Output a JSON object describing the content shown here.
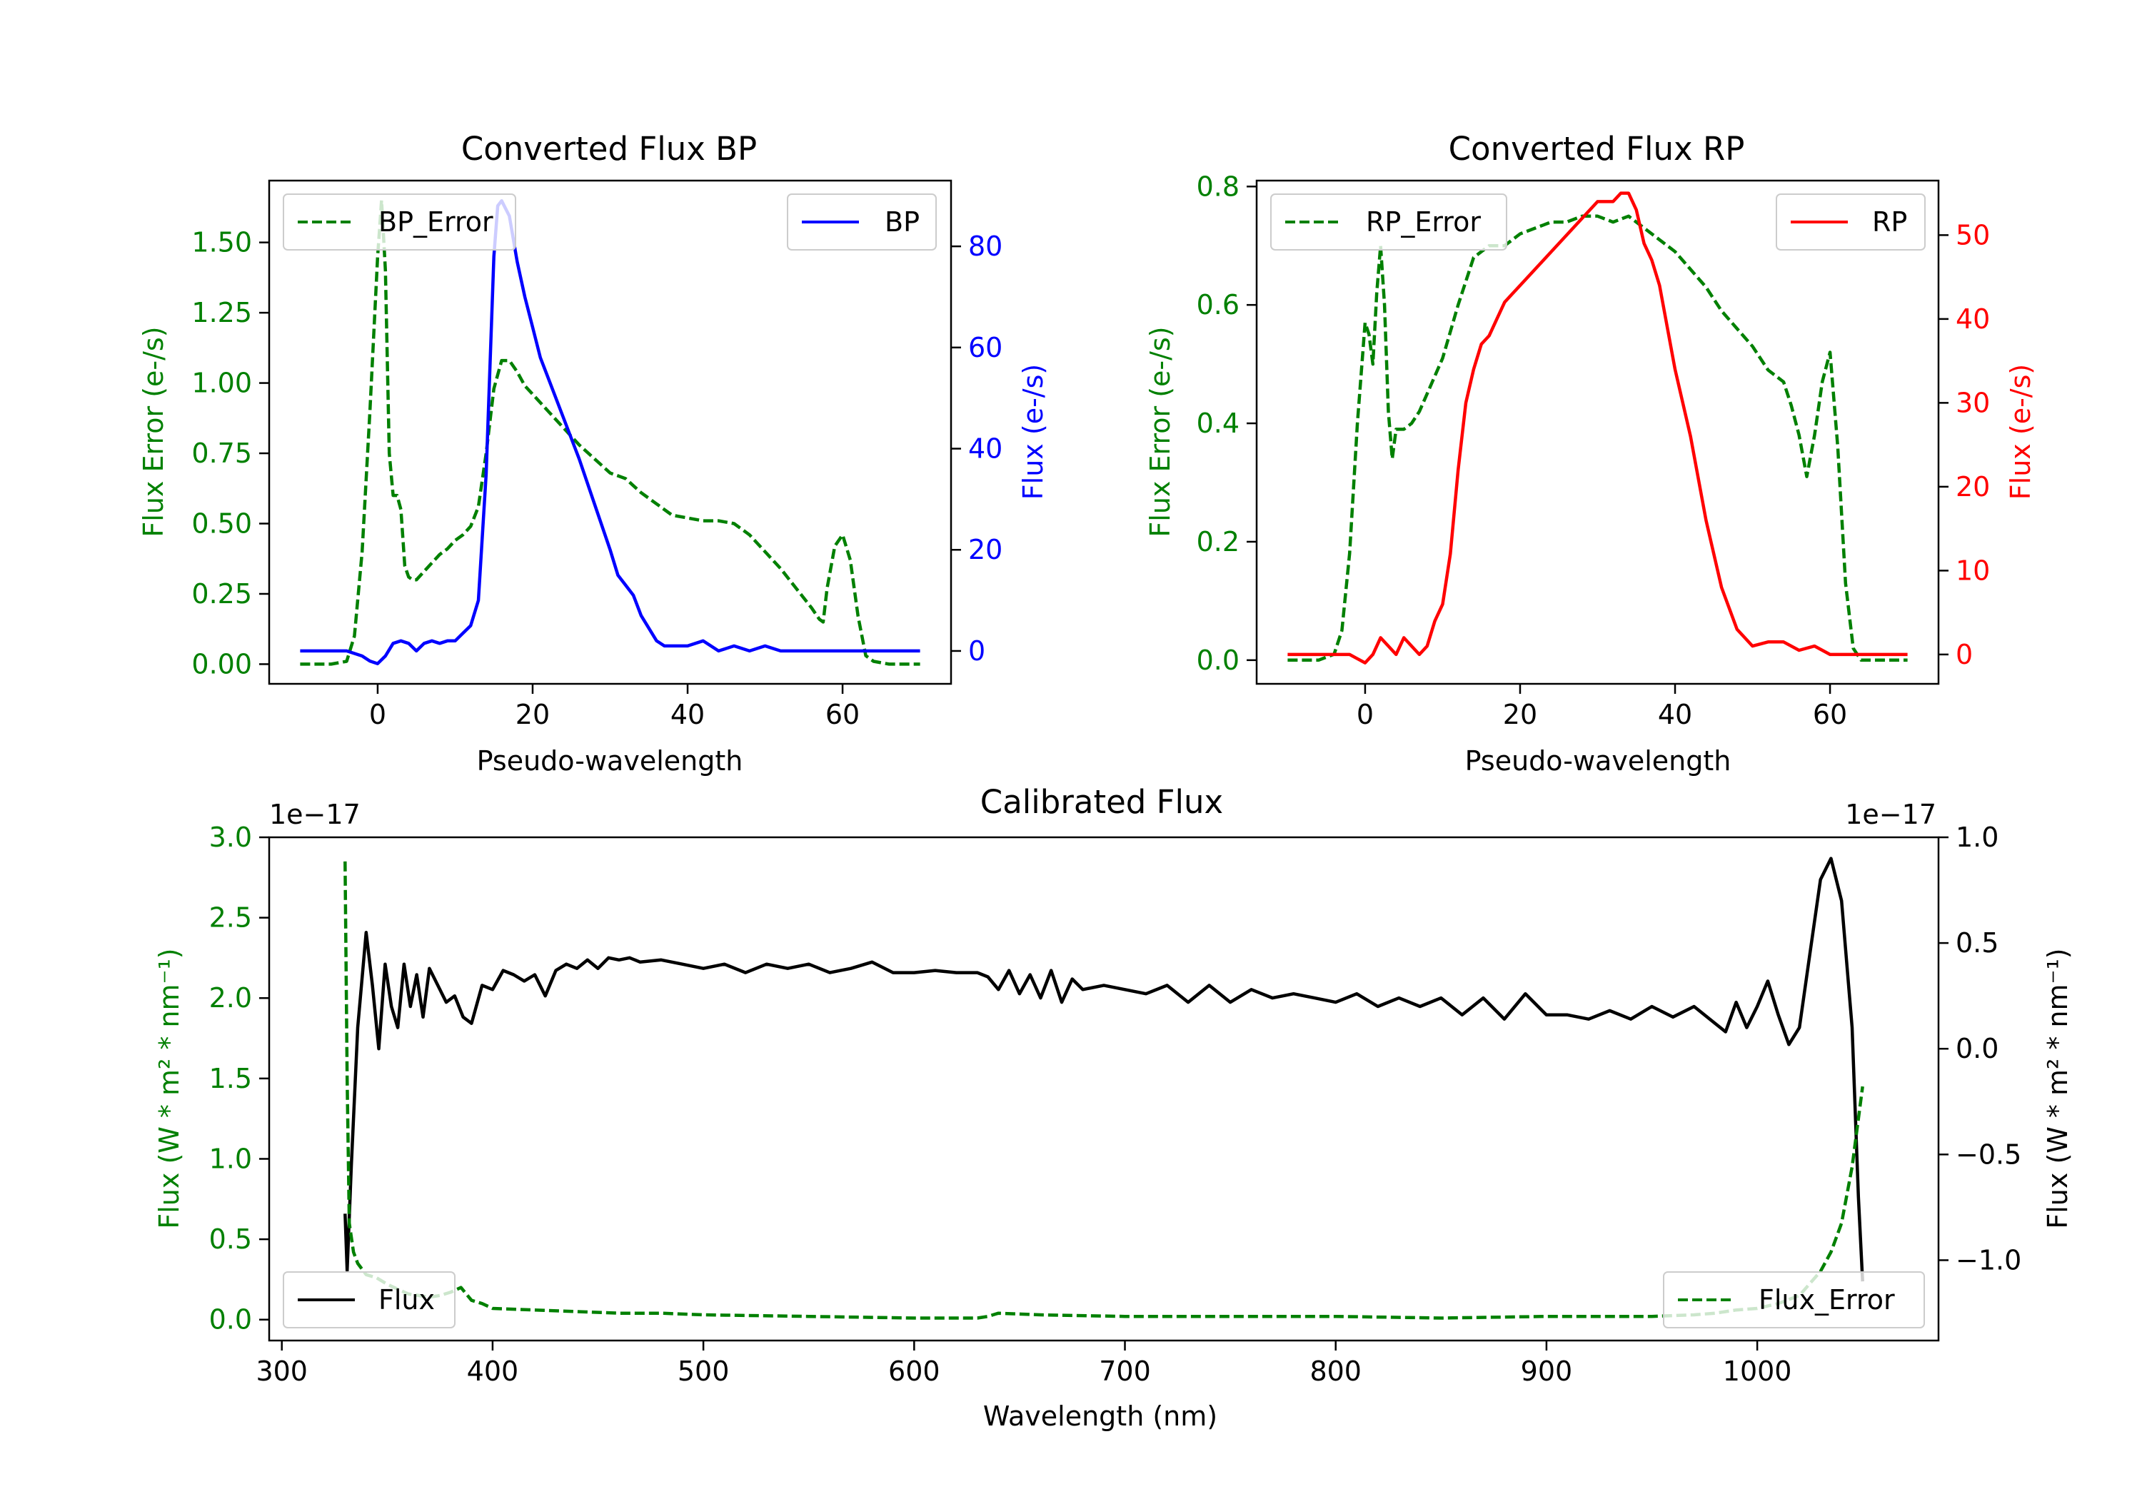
{
  "colors": {
    "green": "#008000",
    "blue": "#0000ff",
    "red": "#ff0000",
    "black": "#000000"
  },
  "chart_data": [
    {
      "type": "line",
      "id": "bp",
      "title": "Converted Flux BP",
      "xlabel": "Pseudo-wavelength",
      "ylabel_left": "Flux Error (e-/s)",
      "ylabel_right": "Flux (e-/s)",
      "xlim": [
        -14,
        74
      ],
      "ylim_left": [
        -0.07,
        1.72
      ],
      "ylim_right": [
        -6.5,
        93
      ],
      "xticks": [
        0,
        20,
        40,
        60
      ],
      "yticks_left": [
        0.0,
        0.25,
        0.5,
        0.75,
        1.0,
        1.25,
        1.5
      ],
      "yticks_left_labels": [
        "0.00",
        "0.25",
        "0.50",
        "0.75",
        "1.00",
        "1.25",
        "1.50"
      ],
      "yticks_right": [
        0,
        20,
        40,
        60,
        80
      ],
      "yticks_right_labels": [
        "0",
        "20",
        "40",
        "60",
        "80"
      ],
      "legend_left": {
        "label": "BP_Error",
        "placement": "upper left"
      },
      "legend_right": {
        "label": "BP",
        "placement": "upper right"
      },
      "series": [
        {
          "name": "BP_Error",
          "axis": "left",
          "style": "dashed",
          "color": "#008000",
          "x": [
            -10,
            -6,
            -4,
            -3,
            -2,
            -1,
            0,
            0.5,
            1,
            1.5,
            2,
            2.5,
            3,
            3.5,
            4,
            4.5,
            5,
            6,
            7,
            8,
            9,
            10,
            11,
            12,
            13,
            14,
            15,
            16,
            17,
            18,
            19,
            20,
            22,
            24,
            26,
            28,
            30,
            32,
            34,
            36,
            38,
            40,
            42,
            44,
            46,
            48,
            50,
            52,
            54,
            56,
            57,
            57.5,
            58,
            59,
            60,
            61,
            62,
            63,
            64,
            66,
            68,
            70
          ],
          "values": [
            0.0,
            0.0,
            0.01,
            0.1,
            0.4,
            0.9,
            1.45,
            1.65,
            1.4,
            0.75,
            0.6,
            0.6,
            0.55,
            0.35,
            0.31,
            0.3,
            0.3,
            0.33,
            0.36,
            0.39,
            0.41,
            0.44,
            0.46,
            0.49,
            0.56,
            0.75,
            0.98,
            1.08,
            1.08,
            1.04,
            0.99,
            0.96,
            0.9,
            0.84,
            0.78,
            0.73,
            0.68,
            0.66,
            0.61,
            0.57,
            0.53,
            0.52,
            0.51,
            0.51,
            0.5,
            0.46,
            0.4,
            0.34,
            0.27,
            0.2,
            0.16,
            0.15,
            0.27,
            0.42,
            0.46,
            0.37,
            0.17,
            0.03,
            0.01,
            0.0,
            0.0,
            0.0
          ]
        },
        {
          "name": "BP",
          "axis": "right",
          "style": "solid",
          "color": "#0000ff",
          "x": [
            -10,
            -6,
            -4,
            -2,
            -1,
            0,
            1,
            2,
            3,
            4,
            5,
            6,
            7,
            8,
            9,
            10,
            11,
            12,
            13,
            14,
            15,
            15.5,
            16,
            17,
            18,
            19,
            20,
            21,
            22,
            24,
            26,
            28,
            30,
            31,
            32,
            33,
            34,
            36,
            37,
            38,
            40,
            42,
            44,
            46,
            48,
            50,
            52,
            54,
            56,
            58,
            60,
            62,
            64,
            66,
            68,
            70
          ],
          "values": [
            0,
            0,
            0,
            -1,
            -2,
            -2.5,
            -1,
            1.5,
            2,
            1.5,
            0,
            1.5,
            2,
            1.5,
            2,
            2,
            3.5,
            5,
            10,
            35,
            78,
            88,
            89,
            86,
            77,
            70,
            64,
            58,
            54,
            46,
            38,
            29,
            20,
            15,
            13,
            11,
            7,
            2,
            1,
            1,
            1,
            2,
            0,
            1,
            0,
            1,
            0,
            0,
            0,
            0,
            0,
            0,
            0,
            0,
            0,
            0
          ]
        }
      ]
    },
    {
      "type": "line",
      "id": "rp",
      "title": "Converted Flux RP",
      "xlabel": "Pseudo-wavelength",
      "ylabel_left": "Flux Error (e-/s)",
      "ylabel_right": "Flux (e-/s)",
      "xlim": [
        -14,
        74
      ],
      "ylim_left": [
        -0.04,
        0.81
      ],
      "ylim_right": [
        -3.5,
        56.5
      ],
      "xticks": [
        0,
        20,
        40,
        60
      ],
      "yticks_left": [
        0.0,
        0.2,
        0.4,
        0.6,
        0.8
      ],
      "yticks_left_labels": [
        "0.0",
        "0.2",
        "0.4",
        "0.6",
        "0.8"
      ],
      "yticks_right": [
        0,
        10,
        20,
        30,
        40,
        50
      ],
      "yticks_right_labels": [
        "0",
        "10",
        "20",
        "30",
        "40",
        "50"
      ],
      "legend_left": {
        "label": "RP_Error",
        "placement": "upper left"
      },
      "legend_right": {
        "label": "RP",
        "placement": "upper right"
      },
      "series": [
        {
          "name": "RP_Error",
          "axis": "right_none",
          "style": "dashed",
          "color": "#008000",
          "axis_used": "left",
          "x": [
            -10,
            -6,
            -4,
            -3,
            -2,
            -1,
            0,
            0.5,
            1,
            1.5,
            2,
            2.5,
            3,
            3.5,
            4,
            4.5,
            5,
            6,
            7,
            8,
            10,
            12,
            14,
            16,
            18,
            20,
            22,
            24,
            26,
            28,
            30,
            32,
            34,
            36,
            38,
            40,
            42,
            44,
            46,
            48,
            50,
            52,
            54,
            55,
            56,
            57,
            58,
            59,
            60,
            61,
            62,
            63,
            64,
            66,
            68,
            70
          ],
          "values": [
            0.0,
            0.0,
            0.01,
            0.05,
            0.18,
            0.4,
            0.57,
            0.55,
            0.5,
            0.62,
            0.7,
            0.6,
            0.42,
            0.34,
            0.39,
            0.39,
            0.39,
            0.4,
            0.42,
            0.45,
            0.51,
            0.6,
            0.68,
            0.7,
            0.7,
            0.72,
            0.73,
            0.74,
            0.74,
            0.75,
            0.75,
            0.74,
            0.75,
            0.73,
            0.71,
            0.69,
            0.66,
            0.63,
            0.59,
            0.56,
            0.53,
            0.49,
            0.47,
            0.43,
            0.38,
            0.31,
            0.38,
            0.47,
            0.52,
            0.36,
            0.13,
            0.02,
            0.0,
            0.0,
            0.0,
            0.0
          ]
        },
        {
          "name": "RP",
          "axis": "right",
          "style": "solid",
          "color": "#ff0000",
          "x": [
            -10,
            -6,
            -4,
            -2,
            -1,
            0,
            1,
            2,
            3,
            4,
            5,
            6,
            7,
            8,
            9,
            10,
            11,
            12,
            13,
            14,
            15,
            16,
            17,
            18,
            19,
            20,
            22,
            24,
            26,
            28,
            30,
            32,
            33,
            34,
            35,
            36,
            37,
            38,
            40,
            42,
            44,
            46,
            48,
            50,
            52,
            54,
            56,
            58,
            60,
            62,
            64,
            66,
            68,
            70
          ],
          "values": [
            0,
            0,
            0,
            0,
            -0.5,
            -1,
            0,
            2,
            1,
            0,
            2,
            1,
            0,
            1,
            4,
            6,
            12,
            22,
            30,
            34,
            37,
            38,
            40,
            42,
            43,
            44,
            46,
            48,
            50,
            52,
            54,
            54,
            55,
            55,
            53,
            49,
            47,
            44,
            34,
            26,
            16,
            8,
            3,
            1,
            1.5,
            1.5,
            0.5,
            1,
            0,
            0,
            0,
            0,
            0,
            0
          ]
        }
      ]
    },
    {
      "type": "line",
      "id": "cal",
      "title": "Calibrated Flux",
      "xlabel": "Wavelength (nm)",
      "ylabel_left": "Flux (W * m² * nm⁻¹)",
      "ylabel_right": "Flux (W * m² * nm⁻¹)",
      "offset_left": "1e−17",
      "offset_right": "1e−17",
      "xlim": [
        294,
        1086
      ],
      "ylim_left": [
        -0.13,
        3.0
      ],
      "ylim_right": [
        -1.38,
        1.0
      ],
      "xticks": [
        300,
        400,
        500,
        600,
        700,
        800,
        900,
        1000
      ],
      "yticks_left": [
        0.0,
        0.5,
        1.0,
        1.5,
        2.0,
        2.5,
        3.0
      ],
      "yticks_left_labels": [
        "0.0",
        "0.5",
        "1.0",
        "1.5",
        "2.0",
        "2.5",
        "3.0"
      ],
      "yticks_right": [
        -1.0,
        -0.5,
        0.0,
        0.5,
        1.0
      ],
      "yticks_right_labels": [
        "−1.0",
        "−0.5",
        "0.0",
        "0.5",
        "1.0"
      ],
      "legend_left": {
        "label": "Flux",
        "placement": "lower left"
      },
      "legend_right": {
        "label": "Flux_Error",
        "placement": "lower right"
      },
      "series": [
        {
          "name": "Flux",
          "axis": "right",
          "style": "solid",
          "color": "#000000",
          "x": [
            330,
            331,
            333,
            336,
            340,
            343,
            346,
            349,
            352,
            355,
            358,
            361,
            364,
            367,
            370,
            374,
            378,
            382,
            386,
            390,
            395,
            400,
            405,
            410,
            415,
            420,
            425,
            430,
            435,
            440,
            445,
            450,
            455,
            460,
            465,
            470,
            480,
            490,
            500,
            510,
            520,
            530,
            540,
            550,
            560,
            570,
            580,
            590,
            600,
            610,
            620,
            630,
            635,
            640,
            645,
            650,
            655,
            660,
            665,
            670,
            675,
            680,
            690,
            700,
            710,
            720,
            730,
            740,
            750,
            760,
            770,
            780,
            790,
            800,
            810,
            820,
            830,
            840,
            850,
            860,
            870,
            880,
            890,
            900,
            910,
            920,
            930,
            940,
            950,
            960,
            970,
            980,
            985,
            990,
            995,
            1000,
            1005,
            1010,
            1015,
            1020,
            1025,
            1030,
            1035,
            1040,
            1045,
            1048,
            1050
          ],
          "values": [
            -0.78,
            -1.05,
            -0.55,
            0.1,
            0.55,
            0.3,
            0.0,
            0.4,
            0.2,
            0.1,
            0.4,
            0.2,
            0.35,
            0.15,
            0.38,
            0.3,
            0.22,
            0.25,
            0.15,
            0.12,
            0.3,
            0.28,
            0.37,
            0.35,
            0.32,
            0.35,
            0.25,
            0.37,
            0.4,
            0.38,
            0.42,
            0.38,
            0.43,
            0.42,
            0.43,
            0.41,
            0.42,
            0.4,
            0.38,
            0.4,
            0.36,
            0.4,
            0.38,
            0.4,
            0.36,
            0.38,
            0.41,
            0.36,
            0.36,
            0.37,
            0.36,
            0.36,
            0.34,
            0.28,
            0.37,
            0.26,
            0.35,
            0.24,
            0.37,
            0.22,
            0.33,
            0.28,
            0.3,
            0.28,
            0.26,
            0.3,
            0.22,
            0.3,
            0.22,
            0.28,
            0.24,
            0.26,
            0.24,
            0.22,
            0.26,
            0.2,
            0.24,
            0.2,
            0.24,
            0.16,
            0.24,
            0.14,
            0.26,
            0.16,
            0.16,
            0.14,
            0.18,
            0.14,
            0.2,
            0.15,
            0.2,
            0.12,
            0.08,
            0.22,
            0.1,
            0.2,
            0.32,
            0.16,
            0.02,
            0.1,
            0.45,
            0.8,
            0.9,
            0.7,
            0.1,
            -0.7,
            -1.1
          ]
        },
        {
          "name": "Flux_Error",
          "axis": "left",
          "style": "dashed",
          "color": "#008000",
          "x": [
            330,
            331,
            332,
            334,
            336,
            340,
            345,
            350,
            360,
            370,
            375,
            380,
            385,
            390,
            395,
            400,
            420,
            440,
            460,
            480,
            500,
            550,
            600,
            630,
            635,
            640,
            660,
            700,
            750,
            800,
            850,
            900,
            950,
            970,
            980,
            990,
            1000,
            1010,
            1020,
            1030,
            1035,
            1040,
            1045,
            1050
          ],
          "values": [
            2.85,
            1.5,
            0.6,
            0.42,
            0.35,
            0.28,
            0.26,
            0.22,
            0.16,
            0.14,
            0.15,
            0.17,
            0.2,
            0.12,
            0.1,
            0.07,
            0.06,
            0.05,
            0.04,
            0.04,
            0.03,
            0.02,
            0.01,
            0.01,
            0.02,
            0.04,
            0.03,
            0.02,
            0.02,
            0.02,
            0.01,
            0.02,
            0.02,
            0.03,
            0.04,
            0.06,
            0.07,
            0.1,
            0.15,
            0.3,
            0.42,
            0.6,
            0.95,
            1.45
          ]
        }
      ]
    }
  ]
}
